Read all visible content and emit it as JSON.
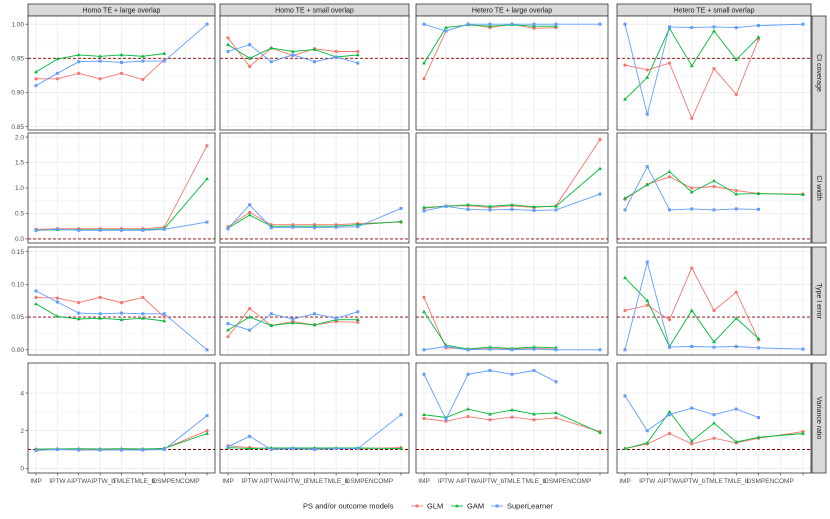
{
  "chart_data": {
    "type": "line",
    "facet_columns": [
      "Homo TE + large overlap",
      "Homo TE + small overlap",
      "Hetero TE + large overlap",
      "Hetero TE + small overlap"
    ],
    "facet_rows": [
      {
        "label": "CI coverage",
        "ylim": [
          0.845,
          1.012
        ],
        "yticks": [
          0.85,
          0.9,
          0.95,
          1.0
        ],
        "ytick_labels": [
          "0.85",
          "0.90",
          "0.95",
          "1.00"
        ],
        "reference": 0.95
      },
      {
        "label": "CI width",
        "ylim": [
          -0.08,
          2.08
        ],
        "yticks": [
          0.0,
          0.5,
          1.0,
          1.5,
          2.0
        ],
        "ytick_labels": [
          "0.0",
          "0.5",
          "1.0",
          "1.5",
          "2.0"
        ],
        "reference": 0.0
      },
      {
        "label": "Type I error",
        "ylim": [
          -0.008,
          0.157
        ],
        "yticks": [
          0.0,
          0.05,
          0.1,
          0.15
        ],
        "ytick_labels": [
          "0.00",
          "0.05",
          "0.10",
          "0.15"
        ],
        "reference": 0.05
      },
      {
        "label": "Variance ratio",
        "ylim": [
          -0.25,
          5.6
        ],
        "yticks": [
          0,
          2,
          4
        ],
        "ytick_labels": [
          "0",
          "2",
          "4"
        ],
        "reference": 1.0
      }
    ],
    "categories": [
      "IMP",
      "IPTW",
      "AIPTW",
      "AIPTW_b",
      "TMLE",
      "TMLE_b",
      "DS",
      "MPEN",
      "COMP"
    ],
    "xtick_labels": [
      "IMP",
      "IPTW",
      "AIPTWAIPTW_b",
      "",
      "TMLE",
      "TMLE_b",
      "DSMPENCOMP",
      "",
      ""
    ],
    "legend_title": "PS and/or outcome models",
    "legend_position": "bottom",
    "grid": true,
    "series": [
      {
        "name": "GLM",
        "color": "#F8766D",
        "marker": "circle"
      },
      {
        "name": "GAM",
        "color": "#00BA38",
        "marker": "triangle"
      },
      {
        "name": "SuperLearner",
        "color": "#619CFF",
        "marker": "square"
      }
    ],
    "values": [
      [
        {
          "GLM": [
            0.92,
            0.92,
            0.928,
            0.92,
            0.928,
            0.919,
            0.948,
            null,
            null
          ],
          "GAM": [
            0.93,
            0.949,
            0.955,
            0.953,
            0.955,
            0.953,
            0.957,
            null,
            null
          ],
          "SuperLearner": [
            0.91,
            0.928,
            0.945,
            0.946,
            0.944,
            0.946,
            0.946,
            null,
            1.0
          ]
        },
        {
          "GLM": [
            0.98,
            0.938,
            0.965,
            0.954,
            0.964,
            0.96,
            0.96,
            null,
            null
          ],
          "GAM": [
            0.97,
            0.95,
            0.965,
            0.96,
            0.963,
            0.952,
            0.955,
            null,
            null
          ],
          "SuperLearner": [
            0.96,
            0.97,
            0.945,
            0.955,
            0.945,
            0.952,
            0.943,
            null,
            null
          ]
        },
        {
          "GLM": [
            0.92,
            0.99,
            1.0,
            0.995,
            1.0,
            0.994,
            0.995,
            null,
            null
          ],
          "GAM": [
            0.943,
            0.995,
            0.999,
            0.997,
            0.999,
            0.997,
            0.997,
            null,
            null
          ],
          "SuperLearner": [
            1.0,
            0.99,
            1.0,
            1.0,
            1.0,
            1.0,
            1.0,
            null,
            1.0
          ]
        },
        {
          "GLM": [
            0.94,
            0.933,
            0.943,
            0.862,
            0.935,
            0.897,
            0.978,
            null,
            null
          ],
          "GAM": [
            0.89,
            0.922,
            0.994,
            0.939,
            0.99,
            0.948,
            0.981,
            null,
            null
          ],
          "SuperLearner": [
            1.0,
            0.868,
            0.996,
            0.995,
            0.996,
            0.995,
            0.998,
            null,
            1.0
          ]
        }
      ],
      [
        {
          "GLM": [
            0.19,
            0.2,
            0.2,
            0.2,
            0.2,
            0.2,
            0.23,
            null,
            1.83
          ],
          "GAM": [
            0.17,
            0.18,
            0.18,
            0.18,
            0.18,
            0.18,
            0.2,
            null,
            1.18
          ],
          "SuperLearner": [
            0.17,
            0.19,
            0.17,
            0.17,
            0.17,
            0.17,
            0.19,
            null,
            0.33
          ]
        },
        {
          "GLM": [
            0.24,
            0.52,
            0.28,
            0.28,
            0.28,
            0.28,
            0.3,
            null,
            0.33
          ],
          "GAM": [
            0.21,
            0.47,
            0.25,
            0.25,
            0.25,
            0.25,
            0.28,
            null,
            0.34
          ],
          "SuperLearner": [
            0.2,
            0.67,
            0.22,
            0.23,
            0.22,
            0.23,
            0.24,
            null,
            0.6
          ]
        },
        {
          "GLM": [
            0.6,
            0.65,
            0.65,
            0.62,
            0.65,
            0.62,
            0.65,
            null,
            1.95
          ],
          "GAM": [
            0.62,
            0.64,
            0.67,
            0.64,
            0.67,
            0.63,
            0.64,
            null,
            1.38
          ],
          "SuperLearner": [
            0.55,
            0.64,
            0.58,
            0.57,
            0.58,
            0.56,
            0.57,
            null,
            0.88
          ]
        },
        {
          "GLM": [
            0.78,
            1.07,
            1.22,
            1.0,
            1.03,
            0.95,
            0.89,
            null,
            0.88
          ],
          "GAM": [
            0.8,
            1.06,
            1.32,
            0.92,
            1.14,
            0.88,
            0.89,
            null,
            0.87
          ],
          "SuperLearner": [
            0.57,
            1.42,
            0.57,
            0.59,
            0.57,
            0.59,
            0.58,
            null,
            null
          ]
        }
      ],
      [
        {
          "GLM": [
            0.08,
            0.079,
            0.072,
            0.08,
            0.072,
            0.08,
            0.05,
            null,
            null
          ],
          "GAM": [
            0.07,
            0.051,
            0.047,
            0.048,
            0.046,
            0.048,
            0.044,
            null,
            null
          ],
          "SuperLearner": [
            0.09,
            0.073,
            0.056,
            0.055,
            0.056,
            0.055,
            0.055,
            null,
            0.0
          ]
        },
        {
          "GLM": [
            0.02,
            0.063,
            0.037,
            0.043,
            0.038,
            0.043,
            0.042,
            null,
            null
          ],
          "GAM": [
            0.03,
            0.05,
            0.037,
            0.041,
            0.038,
            0.046,
            0.046,
            null,
            null
          ],
          "SuperLearner": [
            0.04,
            0.03,
            0.055,
            0.047,
            0.055,
            0.048,
            0.058,
            null,
            null
          ]
        },
        {
          "GLM": [
            0.08,
            0.003,
            0.001,
            0.002,
            0.001,
            0.002,
            0.001,
            null,
            null
          ],
          "GAM": [
            0.058,
            0.007,
            0.001,
            0.004,
            0.002,
            0.004,
            0.003,
            null,
            null
          ],
          "SuperLearner": [
            0.0,
            0.005,
            0.0,
            0.001,
            0.0,
            0.001,
            0.0,
            null,
            0.0
          ]
        },
        {
          "GLM": [
            0.06,
            0.068,
            0.046,
            0.125,
            0.06,
            0.088,
            0.015,
            null,
            null
          ],
          "GAM": [
            0.11,
            0.075,
            0.005,
            0.06,
            0.012,
            0.048,
            0.017,
            null,
            null
          ],
          "SuperLearner": [
            0.0,
            0.134,
            0.004,
            0.005,
            0.004,
            0.005,
            0.003,
            null,
            0.001
          ]
        }
      ],
      [
        {
          "GLM": [
            1.0,
            1.02,
            1.0,
            1.0,
            1.0,
            1.0,
            1.05,
            null,
            2.0
          ],
          "GAM": [
            1.02,
            1.03,
            1.04,
            1.03,
            1.04,
            1.03,
            1.06,
            null,
            1.85
          ],
          "SuperLearner": [
            0.95,
            1.0,
            0.97,
            0.97,
            0.97,
            0.97,
            1.0,
            null,
            2.8
          ]
        },
        {
          "GLM": [
            1.2,
            1.1,
            1.05,
            1.05,
            1.05,
            1.05,
            1.05,
            null,
            1.1
          ],
          "GAM": [
            1.1,
            1.05,
            1.08,
            1.08,
            1.08,
            1.08,
            1.08,
            null,
            1.05
          ],
          "SuperLearner": [
            1.15,
            1.7,
            1.0,
            1.05,
            1.0,
            1.05,
            1.05,
            null,
            2.85
          ]
        },
        {
          "GLM": [
            2.65,
            2.5,
            2.75,
            2.58,
            2.72,
            2.58,
            2.68,
            null,
            1.95
          ],
          "GAM": [
            2.85,
            2.7,
            3.15,
            2.88,
            3.1,
            2.88,
            2.95,
            null,
            1.9
          ],
          "SuperLearner": [
            5.0,
            2.6,
            5.0,
            5.2,
            5.0,
            5.2,
            4.6,
            null,
            null
          ]
        },
        {
          "GLM": [
            1.05,
            1.3,
            1.85,
            1.3,
            1.6,
            1.35,
            1.6,
            null,
            1.95
          ],
          "GAM": [
            1.05,
            1.35,
            3.0,
            1.45,
            2.4,
            1.4,
            1.65,
            null,
            1.85
          ],
          "SuperLearner": [
            3.85,
            2.0,
            2.85,
            3.2,
            2.85,
            3.15,
            2.7,
            null,
            null
          ]
        }
      ]
    ]
  }
}
